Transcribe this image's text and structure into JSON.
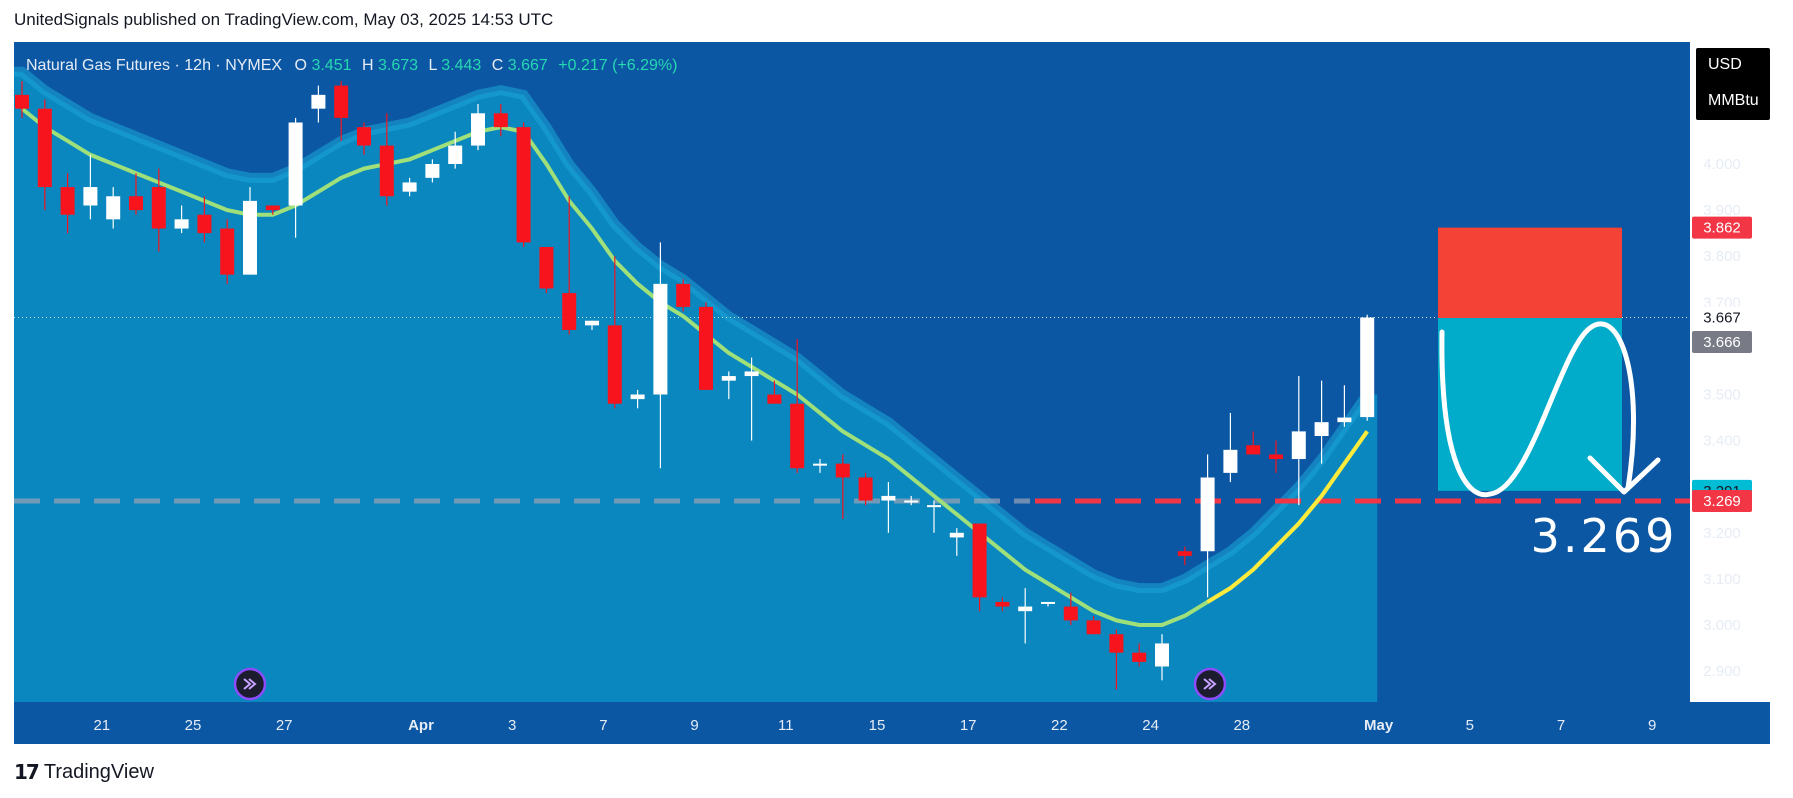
{
  "header": {
    "publish_line": "UnitedSignals published on TradingView.com, May 03, 2025 14:53 UTC"
  },
  "footer": {
    "brand_logo": "17",
    "brand_name": "TradingView"
  },
  "legend": {
    "symbol": "Natural Gas Futures · 12h · NYMEX",
    "open_label": "O",
    "open": "3.451",
    "high_label": "H",
    "high": "3.673",
    "low_label": "L",
    "low": "3.443",
    "close_label": "C",
    "close": "3.667",
    "change": "+0.217 (+6.29%)"
  },
  "currency": {
    "unit1": "USD",
    "unit2": "MMBtu"
  },
  "target_text": "3.269",
  "chart_data": {
    "type": "candlestick",
    "title": "Natural Gas Futures · 12h · NYMEX",
    "y_ticks": [
      "4.000",
      "3.900",
      "3.800",
      "3.700",
      "3.500",
      "3.400",
      "3.300",
      "3.200",
      "3.100",
      "3.000",
      "2.900"
    ],
    "x_ticks": [
      {
        "label": "21",
        "i": 3.5
      },
      {
        "label": "25",
        "i": 7.5
      },
      {
        "label": "27",
        "i": 11.5
      },
      {
        "label": "Apr",
        "i": 17.5
      },
      {
        "label": "3",
        "i": 21.5
      },
      {
        "label": "7",
        "i": 25.5
      },
      {
        "label": "9",
        "i": 29.5
      },
      {
        "label": "11",
        "i": 33.5
      },
      {
        "label": "15",
        "i": 37.5
      },
      {
        "label": "17",
        "i": 41.5
      },
      {
        "label": "22",
        "i": 45.5
      },
      {
        "label": "24",
        "i": 49.5
      },
      {
        "label": "28",
        "i": 53.5
      },
      {
        "label": "May",
        "i": 59.5
      },
      {
        "label": "5",
        "i": 63.5
      },
      {
        "label": "7",
        "i": 67.5
      },
      {
        "label": "9",
        "i": 71.5
      }
    ],
    "candles": [
      {
        "o": 4.15,
        "h": 4.18,
        "l": 4.1,
        "c": 4.12
      },
      {
        "o": 4.12,
        "h": 4.14,
        "l": 3.9,
        "c": 3.95
      },
      {
        "o": 3.95,
        "h": 3.98,
        "l": 3.85,
        "c": 3.89
      },
      {
        "o": 3.91,
        "h": 4.02,
        "l": 3.88,
        "c": 3.95
      },
      {
        "o": 3.88,
        "h": 3.95,
        "l": 3.86,
        "c": 3.93
      },
      {
        "o": 3.93,
        "h": 3.98,
        "l": 3.89,
        "c": 3.9
      },
      {
        "o": 3.95,
        "h": 3.99,
        "l": 3.81,
        "c": 3.86
      },
      {
        "o": 3.86,
        "h": 3.91,
        "l": 3.85,
        "c": 3.88
      },
      {
        "o": 3.89,
        "h": 3.93,
        "l": 3.83,
        "c": 3.85
      },
      {
        "o": 3.86,
        "h": 3.88,
        "l": 3.74,
        "c": 3.76
      },
      {
        "o": 3.76,
        "h": 3.95,
        "l": 3.76,
        "c": 3.92
      },
      {
        "o": 3.91,
        "h": 3.91,
        "l": 3.89,
        "c": 3.9
      },
      {
        "o": 3.91,
        "h": 4.1,
        "l": 3.84,
        "c": 4.09
      },
      {
        "o": 4.12,
        "h": 4.17,
        "l": 4.09,
        "c": 4.15
      },
      {
        "o": 4.17,
        "h": 4.18,
        "l": 4.05,
        "c": 4.1
      },
      {
        "o": 4.08,
        "h": 4.09,
        "l": 4.02,
        "c": 4.04
      },
      {
        "o": 4.04,
        "h": 4.11,
        "l": 3.91,
        "c": 3.93
      },
      {
        "o": 3.94,
        "h": 3.97,
        "l": 3.93,
        "c": 3.96
      },
      {
        "o": 3.97,
        "h": 4.01,
        "l": 3.96,
        "c": 4.0
      },
      {
        "o": 4.0,
        "h": 4.07,
        "l": 3.99,
        "c": 4.04
      },
      {
        "o": 4.04,
        "h": 4.13,
        "l": 4.03,
        "c": 4.11
      },
      {
        "o": 4.11,
        "h": 4.13,
        "l": 4.06,
        "c": 4.08
      },
      {
        "o": 4.08,
        "h": 4.09,
        "l": 3.82,
        "c": 3.83
      },
      {
        "o": 3.82,
        "h": 3.82,
        "l": 3.72,
        "c": 3.73
      },
      {
        "o": 3.72,
        "h": 3.93,
        "l": 3.63,
        "c": 3.64
      },
      {
        "o": 3.65,
        "h": 3.66,
        "l": 3.64,
        "c": 3.66
      },
      {
        "o": 3.65,
        "h": 3.8,
        "l": 3.47,
        "c": 3.48
      },
      {
        "o": 3.49,
        "h": 3.51,
        "l": 3.47,
        "c": 3.5
      },
      {
        "o": 3.5,
        "h": 3.83,
        "l": 3.34,
        "c": 3.74
      },
      {
        "o": 3.74,
        "h": 3.75,
        "l": 3.68,
        "c": 3.69
      },
      {
        "o": 3.69,
        "h": 3.7,
        "l": 3.51,
        "c": 3.51
      },
      {
        "o": 3.53,
        "h": 3.55,
        "l": 3.49,
        "c": 3.54
      },
      {
        "o": 3.54,
        "h": 3.58,
        "l": 3.4,
        "c": 3.55
      },
      {
        "o": 3.5,
        "h": 3.53,
        "l": 3.48,
        "c": 3.48
      },
      {
        "o": 3.48,
        "h": 3.62,
        "l": 3.33,
        "c": 3.34
      },
      {
        "o": 3.35,
        "h": 3.36,
        "l": 3.33,
        "c": 3.35
      },
      {
        "o": 3.35,
        "h": 3.37,
        "l": 3.23,
        "c": 3.32
      },
      {
        "o": 3.32,
        "h": 3.33,
        "l": 3.26,
        "c": 3.27
      },
      {
        "o": 3.27,
        "h": 3.31,
        "l": 3.2,
        "c": 3.28
      },
      {
        "o": 3.27,
        "h": 3.28,
        "l": 3.26,
        "c": 3.27
      },
      {
        "o": 3.26,
        "h": 3.27,
        "l": 3.2,
        "c": 3.26
      },
      {
        "o": 3.19,
        "h": 3.21,
        "l": 3.15,
        "c": 3.2
      },
      {
        "o": 3.22,
        "h": 3.22,
        "l": 3.03,
        "c": 3.06
      },
      {
        "o": 3.05,
        "h": 3.06,
        "l": 3.03,
        "c": 3.04
      },
      {
        "o": 3.03,
        "h": 3.08,
        "l": 2.96,
        "c": 3.04
      },
      {
        "o": 3.05,
        "h": 3.05,
        "l": 3.04,
        "c": 3.05
      },
      {
        "o": 3.04,
        "h": 3.07,
        "l": 3.0,
        "c": 3.01
      },
      {
        "o": 3.01,
        "h": 3.02,
        "l": 2.98,
        "c": 2.98
      },
      {
        "o": 2.98,
        "h": 2.99,
        "l": 2.86,
        "c": 2.94
      },
      {
        "o": 2.94,
        "h": 2.96,
        "l": 2.91,
        "c": 2.92
      },
      {
        "o": 2.91,
        "h": 2.98,
        "l": 2.88,
        "c": 2.96
      },
      {
        "o": 3.16,
        "h": 3.17,
        "l": 3.13,
        "c": 3.15
      },
      {
        "o": 3.16,
        "h": 3.37,
        "l": 3.06,
        "c": 3.32
      },
      {
        "o": 3.33,
        "h": 3.46,
        "l": 3.31,
        "c": 3.38
      },
      {
        "o": 3.39,
        "h": 3.42,
        "l": 3.37,
        "c": 3.37
      },
      {
        "o": 3.37,
        "h": 3.4,
        "l": 3.33,
        "c": 3.36
      },
      {
        "o": 3.36,
        "h": 3.54,
        "l": 3.26,
        "c": 3.42
      },
      {
        "o": 3.41,
        "h": 3.53,
        "l": 3.35,
        "c": 3.44
      },
      {
        "o": 3.44,
        "h": 3.52,
        "l": 3.43,
        "c": 3.45
      },
      {
        "o": 3.451,
        "h": 3.673,
        "l": 3.443,
        "c": 3.667
      }
    ],
    "ma": [
      4.12,
      4.08,
      4.05,
      4.02,
      4.0,
      3.98,
      3.96,
      3.94,
      3.92,
      3.9,
      3.89,
      3.89,
      3.91,
      3.94,
      3.97,
      3.99,
      4.0,
      4.01,
      4.03,
      4.05,
      4.07,
      4.08,
      4.07,
      4.0,
      3.92,
      3.86,
      3.79,
      3.74,
      3.7,
      3.67,
      3.63,
      3.59,
      3.56,
      3.53,
      3.5,
      3.46,
      3.42,
      3.39,
      3.36,
      3.32,
      3.28,
      3.24,
      3.2,
      3.16,
      3.12,
      3.09,
      3.06,
      3.03,
      3.01,
      3.0,
      3.0,
      3.02,
      3.05,
      3.08,
      3.12,
      3.17,
      3.22,
      3.28,
      3.35,
      3.42
    ],
    "stop_level": 3.862,
    "entry_level": 3.666,
    "target_level": 3.291,
    "dashed_level": 3.269,
    "last_close": 3.667,
    "price_labels": [
      {
        "text": "3.862",
        "value": 3.862,
        "bg": "#f23645",
        "fg": "#ffffff"
      },
      {
        "text": "3.667",
        "value": 3.667,
        "bg": "#ffffff",
        "fg": "#131722"
      },
      {
        "text": "3.666",
        "value": 3.666,
        "bg": "#787b86",
        "fg": "#ffffff",
        "offset": 24
      },
      {
        "text": "3.291",
        "value": 3.291,
        "bg": "#00bcd4",
        "fg": "#131722"
      },
      {
        "text": "3.269",
        "value": 3.269,
        "bg": "#f23645",
        "fg": "#ffffff"
      }
    ]
  },
  "colors": {
    "plot_bg": "#0b57a4",
    "band_fill": "#0a87be",
    "band_edge": "#1aa2d6",
    "ma_line": "#9fe07a",
    "ma_line_recent": "#ffeb3b",
    "up_candle": "#ffffff",
    "down_candle": "#f7141c",
    "stop_box": "#f44336",
    "target_box": "#00acc9",
    "dashed_red": "#f23645",
    "dashed_gray": "#9aa4b8"
  },
  "icons": {
    "event_marker": "arrow-circle-icon"
  }
}
